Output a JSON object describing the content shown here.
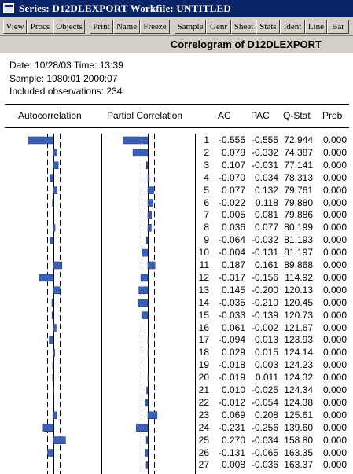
{
  "window": {
    "title": "Series: D12DLEXPORT   Workfile: UNTITLED"
  },
  "toolbar": {
    "buttons": [
      "View",
      "Procs",
      "Objects",
      "Print",
      "Name",
      "Freeze",
      "Sample",
      "Genr",
      "Sheet",
      "Stats",
      "Ident",
      "Line",
      "Bar"
    ]
  },
  "header": {
    "title": "Correlogram of D12DLEXPORT"
  },
  "info": {
    "date_line": "Date: 10/28/03   Time: 13:39",
    "sample_line": "Sample: 1980:01 2000:07",
    "obs_line": "Included observations: 234"
  },
  "columns": {
    "autocorrelation": "Autocorrelation",
    "partial_correlation": "Partial Correlation",
    "ac": "AC",
    "pac": "PAC",
    "qstat": "Q-Stat",
    "prob": "Prob"
  },
  "colors": {
    "bar": "#3a60b5",
    "titlebar": "#0a246a",
    "face": "#d4d0c8"
  },
  "rows": [
    {
      "lag": "1",
      "ac": "-0.555",
      "pac": "-0.555",
      "q": "72.944",
      "prob": "0.000"
    },
    {
      "lag": "2",
      "ac": "0.078",
      "pac": "-0.332",
      "q": "74.387",
      "prob": "0.000"
    },
    {
      "lag": "3",
      "ac": "0.107",
      "pac": "-0.031",
      "q": "77.141",
      "prob": "0.000"
    },
    {
      "lag": "4",
      "ac": "-0.070",
      "pac": "0.034",
      "q": "78.313",
      "prob": "0.000"
    },
    {
      "lag": "5",
      "ac": "0.077",
      "pac": "0.132",
      "q": "79.761",
      "prob": "0.000"
    },
    {
      "lag": "6",
      "ac": "-0.022",
      "pac": "0.118",
      "q": "79.880",
      "prob": "0.000"
    },
    {
      "lag": "7",
      "ac": "0.005",
      "pac": "0.081",
      "q": "79.886",
      "prob": "0.000"
    },
    {
      "lag": "8",
      "ac": "0.036",
      "pac": "0.077",
      "q": "80.199",
      "prob": "0.000"
    },
    {
      "lag": "9",
      "ac": "-0.064",
      "pac": "-0.032",
      "q": "81.193",
      "prob": "0.000"
    },
    {
      "lag": "10",
      "ac": "-0.004",
      "pac": "-0.131",
      "q": "81.197",
      "prob": "0.000"
    },
    {
      "lag": "11",
      "ac": "0.187",
      "pac": "0.161",
      "q": "89.868",
      "prob": "0.000"
    },
    {
      "lag": "12",
      "ac": "-0.317",
      "pac": "-0.156",
      "q": "114.92",
      "prob": "0.000"
    },
    {
      "lag": "13",
      "ac": "0.145",
      "pac": "-0.200",
      "q": "120.13",
      "prob": "0.000"
    },
    {
      "lag": "14",
      "ac": "-0.035",
      "pac": "-0.210",
      "q": "120.45",
      "prob": "0.000"
    },
    {
      "lag": "15",
      "ac": "-0.033",
      "pac": "-0.139",
      "q": "120.73",
      "prob": "0.000"
    },
    {
      "lag": "16",
      "ac": "0.061",
      "pac": "-0.002",
      "q": "121.67",
      "prob": "0.000"
    },
    {
      "lag": "17",
      "ac": "-0.094",
      "pac": "0.013",
      "q": "123.93",
      "prob": "0.000"
    },
    {
      "lag": "18",
      "ac": "0.029",
      "pac": "0.015",
      "q": "124.14",
      "prob": "0.000"
    },
    {
      "lag": "19",
      "ac": "-0.018",
      "pac": "0.003",
      "q": "124.23",
      "prob": "0.000"
    },
    {
      "lag": "20",
      "ac": "-0.019",
      "pac": "0.011",
      "q": "124.32",
      "prob": "0.000"
    },
    {
      "lag": "21",
      "ac": "0.010",
      "pac": "-0.025",
      "q": "124.34",
      "prob": "0.000"
    },
    {
      "lag": "22",
      "ac": "-0.012",
      "pac": "-0.054",
      "q": "124.38",
      "prob": "0.000"
    },
    {
      "lag": "23",
      "ac": "0.069",
      "pac": "0.208",
      "q": "125.61",
      "prob": "0.000"
    },
    {
      "lag": "24",
      "ac": "-0.231",
      "pac": "-0.256",
      "q": "139.60",
      "prob": "0.000"
    },
    {
      "lag": "25",
      "ac": "0.270",
      "pac": "-0.034",
      "q": "158.80",
      "prob": "0.000"
    },
    {
      "lag": "26",
      "ac": "-0.131",
      "pac": "-0.065",
      "q": "163.35",
      "prob": "0.000"
    },
    {
      "lag": "27",
      "ac": "0.008",
      "pac": "-0.036",
      "q": "163.37",
      "prob": "0.000"
    }
  ]
}
